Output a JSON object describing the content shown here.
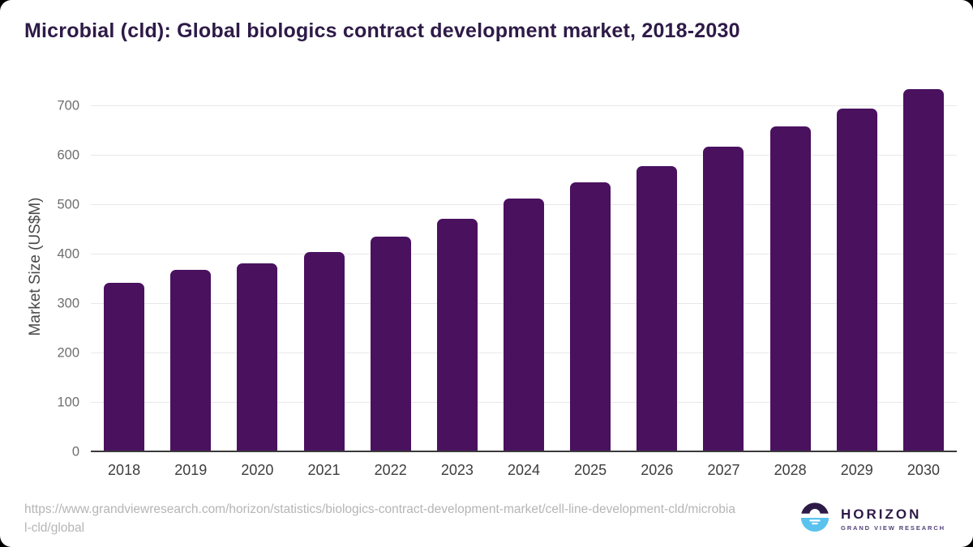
{
  "title": "Microbial (cld): Global biologics contract development market, 2018-2030",
  "chart_data": {
    "type": "bar",
    "title": "Microbial (cld): Global biologics contract development market, 2018-2030",
    "categories": [
      "2018",
      "2019",
      "2020",
      "2021",
      "2022",
      "2023",
      "2024",
      "2025",
      "2026",
      "2027",
      "2028",
      "2029",
      "2030"
    ],
    "values": [
      342,
      368,
      382,
      405,
      436,
      471,
      512,
      545,
      578,
      618,
      658,
      695,
      733
    ],
    "xlabel": "",
    "ylabel": "Market Size (US$M)",
    "ylim": [
      0,
      750
    ],
    "yticks": [
      0,
      100,
      200,
      300,
      400,
      500,
      600,
      700
    ],
    "grid": "horizontal",
    "legend": "none",
    "bar_color": "#4a115f"
  },
  "footer": {
    "source_url": "https://www.grandviewresearch.com/horizon/statistics/biologics-contract-development-market/cell-line-development-cld/microbial-cld/global",
    "url_lines": [
      "https://www.grandviewresearch.com/horizon/statistics/biologics-contract-development-market/cell-line-development-cld/microbia",
      "l-cld/global"
    ],
    "logo": {
      "name": "HORIZON",
      "subtitle": "GRAND VIEW RESEARCH"
    }
  },
  "colors": {
    "bar_purple": "#4a115f",
    "title_purple": "#2e1a47",
    "logo_blue": "#5bc2ee",
    "gridline_gray": "#e8e8e8"
  }
}
